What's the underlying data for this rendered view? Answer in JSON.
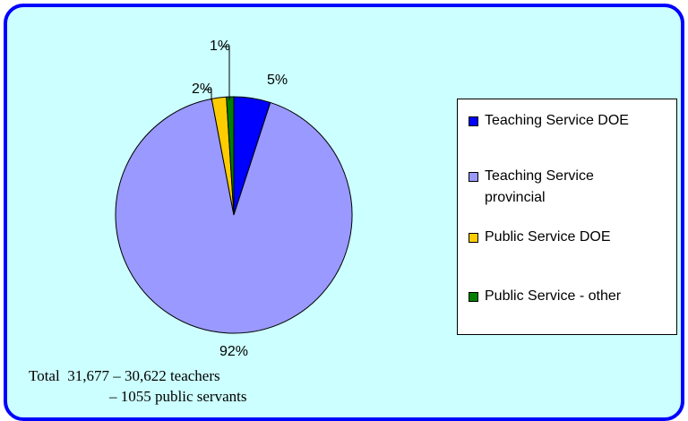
{
  "chart_data": {
    "type": "pie",
    "series": [
      {
        "name": "Teaching Service DOE",
        "color": "#0000ff",
        "values": [
          5
        ]
      },
      {
        "name": "Teaching Service provincial",
        "color": "#9999ff",
        "values": [
          92
        ]
      },
      {
        "name": "Public Service DOE",
        "color": "#ffcc00",
        "values": [
          2
        ]
      },
      {
        "name": "Public Service - other",
        "color": "#008000",
        "values": [
          1
        ]
      }
    ],
    "value_labels": [
      "5%",
      "92%",
      "2%",
      "1%"
    ],
    "annotations": [
      "Total  31,677 – 30,622 teachers",
      "– 1055 public servants"
    ],
    "legend": "right"
  }
}
